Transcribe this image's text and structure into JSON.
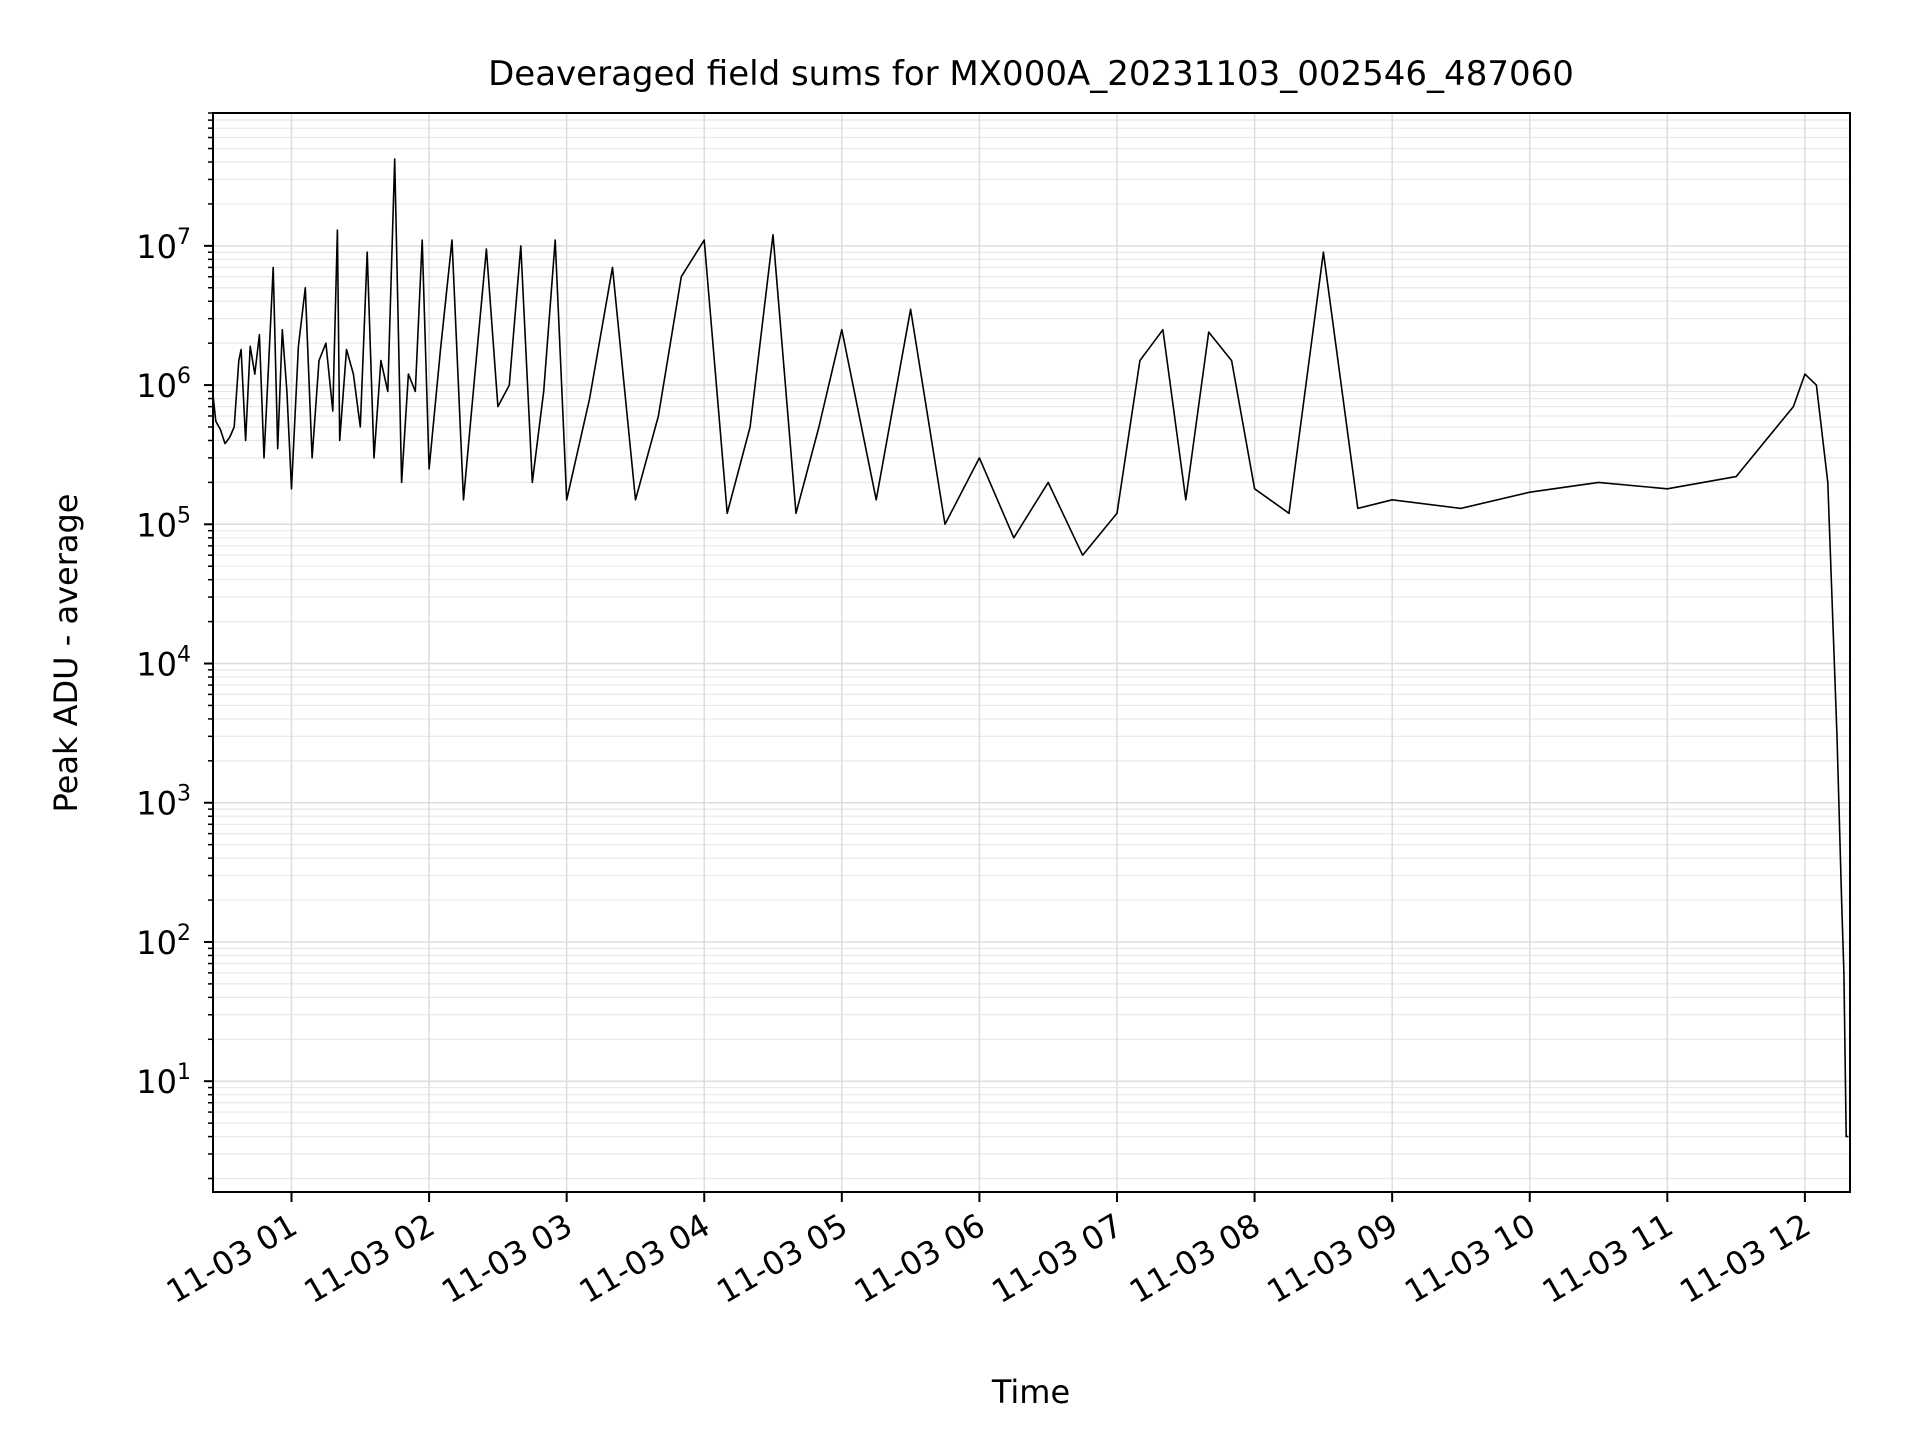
{
  "chart_data": {
    "type": "line",
    "title": "Deaveraged field sums for MX000A_20231103_002546_487060",
    "xlabel": "Time",
    "ylabel": "Peak ADU - average",
    "yscale": "log",
    "ylim": [
      1.6,
      90000000
    ],
    "xlim": [
      "2023-11-03 00:25:46",
      "2023-11-03 12:19:40"
    ],
    "x_ticks": [
      "11-03 01",
      "11-03 02",
      "11-03 03",
      "11-03 04",
      "11-03 05",
      "11-03 06",
      "11-03 07",
      "11-03 08",
      "11-03 09",
      "11-03 10",
      "11-03 11",
      "11-03 12"
    ],
    "x_tick_times": [
      "2023-11-03 01:00",
      "2023-11-03 02:00",
      "2023-11-03 03:00",
      "2023-11-03 04:00",
      "2023-11-03 05:00",
      "2023-11-03 06:00",
      "2023-11-03 07:00",
      "2023-11-03 08:00",
      "2023-11-03 09:00",
      "2023-11-03 10:00",
      "2023-11-03 11:00",
      "2023-11-03 12:00"
    ],
    "y_ticks": [
      10,
      100,
      1000,
      10000,
      100000,
      1000000,
      10000000
    ],
    "y_tick_labels": [
      {
        "base": "10",
        "exp": "1"
      },
      {
        "base": "10",
        "exp": "2"
      },
      {
        "base": "10",
        "exp": "3"
      },
      {
        "base": "10",
        "exp": "4"
      },
      {
        "base": "10",
        "exp": "5"
      },
      {
        "base": "10",
        "exp": "6"
      },
      {
        "base": "10",
        "exp": "7"
      }
    ],
    "grid": true,
    "line_color": "#000000",
    "series": [
      {
        "x": [
          "2023-11-03 00:25:46",
          "2023-11-03 00:27",
          "2023-11-03 00:29",
          "2023-11-03 00:31",
          "2023-11-03 00:33",
          "2023-11-03 00:35",
          "2023-11-03 00:37",
          "2023-11-03 00:38",
          "2023-11-03 00:40",
          "2023-11-03 00:42",
          "2023-11-03 00:44",
          "2023-11-03 00:46",
          "2023-11-03 00:48",
          "2023-11-03 00:50",
          "2023-11-03 00:52",
          "2023-11-03 00:54",
          "2023-11-03 00:56",
          "2023-11-03 00:58",
          "2023-11-03 01:00",
          "2023-11-03 01:03",
          "2023-11-03 01:06",
          "2023-11-03 01:09",
          "2023-11-03 01:12",
          "2023-11-03 01:15",
          "2023-11-03 01:18",
          "2023-11-03 01:20",
          "2023-11-03 01:21",
          "2023-11-03 01:24",
          "2023-11-03 01:27",
          "2023-11-03 01:30",
          "2023-11-03 01:33",
          "2023-11-03 01:36",
          "2023-11-03 01:39",
          "2023-11-03 01:42",
          "2023-11-03 01:45",
          "2023-11-03 01:48",
          "2023-11-03 01:51",
          "2023-11-03 01:54",
          "2023-11-03 01:57",
          "2023-11-03 02:00",
          "2023-11-03 02:05",
          "2023-11-03 02:10",
          "2023-11-03 02:15",
          "2023-11-03 02:20",
          "2023-11-03 02:25",
          "2023-11-03 02:30",
          "2023-11-03 02:35",
          "2023-11-03 02:40",
          "2023-11-03 02:45",
          "2023-11-03 02:50",
          "2023-11-03 02:55",
          "2023-11-03 03:00",
          "2023-11-03 03:10",
          "2023-11-03 03:20",
          "2023-11-03 03:30",
          "2023-11-03 03:40",
          "2023-11-03 03:50",
          "2023-11-03 04:00",
          "2023-11-03 04:10",
          "2023-11-03 04:20",
          "2023-11-03 04:30",
          "2023-11-03 04:40",
          "2023-11-03 04:50",
          "2023-11-03 05:00",
          "2023-11-03 05:15",
          "2023-11-03 05:30",
          "2023-11-03 05:45",
          "2023-11-03 06:00",
          "2023-11-03 06:15",
          "2023-11-03 06:30",
          "2023-11-03 06:45",
          "2023-11-03 07:00",
          "2023-11-03 07:10",
          "2023-11-03 07:20",
          "2023-11-03 07:30",
          "2023-11-03 07:40",
          "2023-11-03 07:50",
          "2023-11-03 08:00",
          "2023-11-03 08:15",
          "2023-11-03 08:30",
          "2023-11-03 08:45",
          "2023-11-03 09:00",
          "2023-11-03 09:30",
          "2023-11-03 10:00",
          "2023-11-03 10:30",
          "2023-11-03 11:00",
          "2023-11-03 11:30",
          "2023-11-03 11:55",
          "2023-11-03 12:00",
          "2023-11-03 12:05",
          "2023-11-03 12:10",
          "2023-11-03 12:14",
          "2023-11-03 12:16",
          "2023-11-03 12:17",
          "2023-11-03 12:18",
          "2023-11-03 12:19"
        ],
        "y": [
          850000,
          550000,
          480000,
          380000,
          420000,
          500000,
          1500000,
          1800000,
          400000,
          1900000,
          1200000,
          2300000,
          300000,
          1400000,
          7000000,
          350000,
          2500000,
          900000,
          180000,
          1900000,
          5000000,
          300000,
          1500000,
          2000000,
          650000,
          13000000,
          400000,
          1800000,
          1200000,
          500000,
          9000000,
          300000,
          1500000,
          900000,
          42000000,
          200000,
          1200000,
          900000,
          11000000,
          250000,
          1800000,
          11000000,
          150000,
          1200000,
          9500000,
          700000,
          1000000,
          10000000,
          200000,
          900000,
          11000000,
          150000,
          800000,
          7000000,
          150000,
          600000,
          6000000,
          11000000,
          120000,
          500000,
          12000000,
          120000,
          500000,
          2500000,
          150000,
          3500000,
          100000,
          300000,
          80000,
          200000,
          60000,
          120000,
          1500000,
          2500000,
          150000,
          2400000,
          1500000,
          180000,
          120000,
          9000000,
          130000,
          150000,
          130000,
          170000,
          200000,
          180000,
          220000,
          700000,
          1200000,
          1000000,
          200000,
          3000,
          200,
          60,
          4,
          4
        ]
      }
    ]
  }
}
